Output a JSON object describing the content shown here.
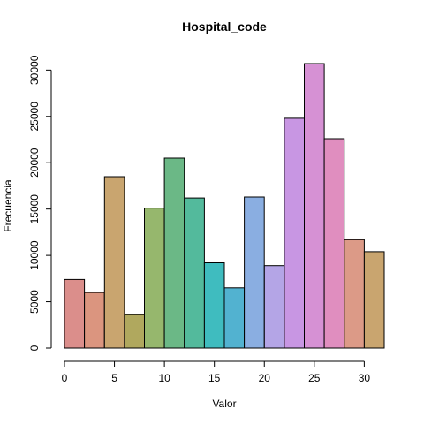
{
  "chart_data": {
    "type": "bar",
    "title": "Hospital_code",
    "xlabel": "Valor",
    "ylabel": "Frecuencia",
    "bin_edges": [
      0,
      2,
      4,
      6,
      8,
      10,
      12,
      14,
      16,
      18,
      20,
      22,
      24,
      26,
      28,
      30,
      32
    ],
    "values": [
      7400,
      6000,
      18500,
      3600,
      15100,
      20500,
      16200,
      9200,
      6500,
      16300,
      8900,
      24800,
      30700,
      22600,
      11700,
      10400
    ],
    "colors": [
      "#db8e8b",
      "#db957f",
      "#c9a56f",
      "#b0a85e",
      "#96b76d",
      "#6bb886",
      "#53ba9c",
      "#3fbcbf",
      "#52b2d0",
      "#8aaee1",
      "#b4a5e6",
      "#c896e3",
      "#d691d4",
      "#e08ebf",
      "#dc9a87",
      "#c9a56f"
    ],
    "xticks": [
      "0",
      "5",
      "10",
      "15",
      "20",
      "25",
      "30"
    ],
    "yticks": [
      "0",
      "5000",
      "10000",
      "15000",
      "20000",
      "25000",
      "30000"
    ],
    "xlim": [
      -0.5,
      32
    ],
    "ylim": [
      0,
      30700
    ],
    "grid": false
  }
}
